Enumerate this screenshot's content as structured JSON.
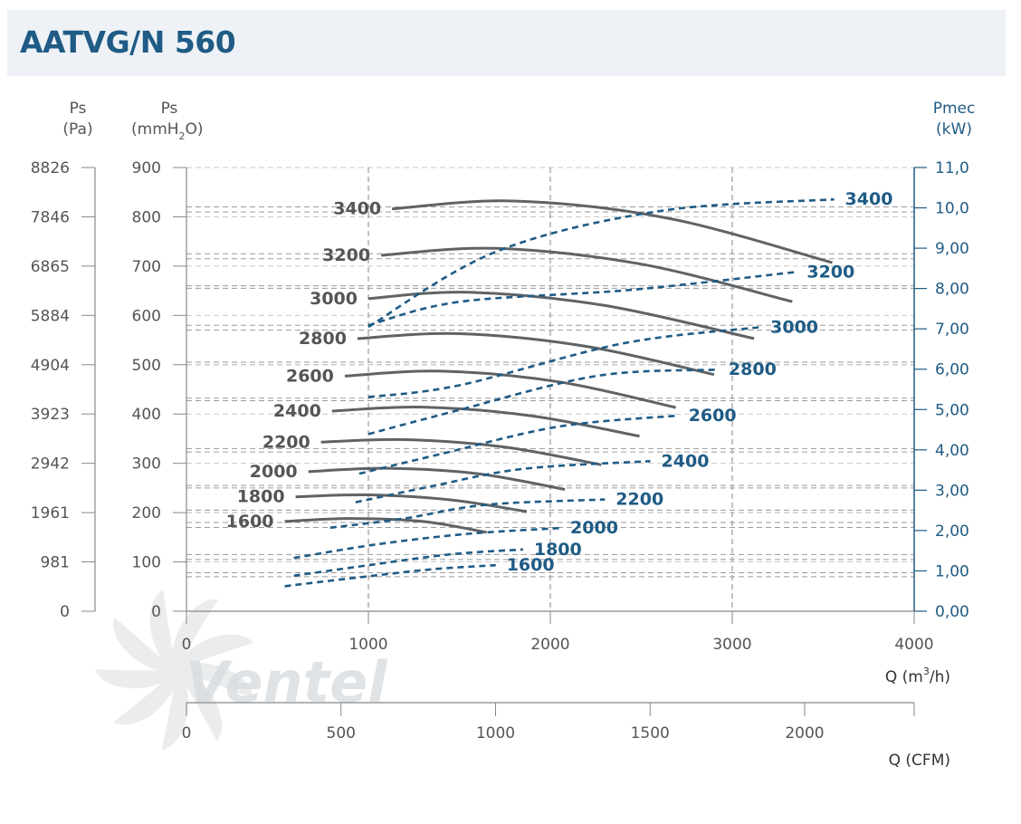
{
  "title": "AATVG/N 560",
  "colors": {
    "pressure_curve": "#5f6366",
    "power_curve": "#1f5b85",
    "grid": "#9a9a9a",
    "axis_gray": "#888888",
    "axis_blue": "#1f5b85",
    "title_bg": "#eef2f6",
    "title_text": "#1f5b85",
    "watermark": "#d9dde0"
  },
  "watermark_text": "Ventel",
  "axes": {
    "left_pa": {
      "title_line1": "Ps",
      "title_line2": "(Pa)",
      "ticks": [
        "8826",
        "7846",
        "6865",
        "5884",
        "4904",
        "3923",
        "2942",
        "1961",
        "981",
        "0"
      ]
    },
    "left_mm": {
      "title_line1": "Ps",
      "title_line2_pre": "(mmH",
      "title_line2_sub": "2",
      "title_line2_post": "O)",
      "ticks": [
        "900",
        "800",
        "700",
        "600",
        "500",
        "400",
        "300",
        "200",
        "100",
        "0"
      ],
      "range": [
        0,
        900
      ]
    },
    "right_kw": {
      "title_line1": "Pmec",
      "title_line2": "(kW)",
      "ticks": [
        "11,0",
        "10,0",
        "9,00",
        "8,00",
        "7,00",
        "6,00",
        "5,00",
        "4,00",
        "3,00",
        "2,00",
        "1,00",
        "0,00"
      ],
      "range": [
        0,
        11
      ]
    },
    "x_m3h": {
      "ticks": [
        "0",
        "1000",
        "2000",
        "3000",
        "4000"
      ],
      "range": [
        0,
        4000
      ],
      "label_pre": "Q (m",
      "label_sup": "3",
      "label_post": "/h)"
    },
    "x_cfm": {
      "ticks": [
        "0",
        "500",
        "1000",
        "1500",
        "2000"
      ],
      "label": "Q (CFM)"
    }
  },
  "chart_data": {
    "type": "line",
    "title": "AATVG/N 560",
    "xlabel": "Q (m3/h)",
    "ylabel": "Ps (mmH2O)",
    "y2label": "Pmec (kW)",
    "xlim": [
      0,
      4000
    ],
    "ylim": [
      0,
      900
    ],
    "y2lim": [
      0,
      11
    ],
    "pressure_series": [
      {
        "name": "1600",
        "points": [
          [
            540,
            182
          ],
          [
            900,
            188
          ],
          [
            1300,
            182
          ],
          [
            1650,
            160
          ]
        ]
      },
      {
        "name": "1800",
        "points": [
          [
            600,
            232
          ],
          [
            1000,
            236
          ],
          [
            1450,
            226
          ],
          [
            1870,
            202
          ]
        ]
      },
      {
        "name": "2000",
        "points": [
          [
            670,
            283
          ],
          [
            1100,
            290
          ],
          [
            1600,
            279
          ],
          [
            2080,
            247
          ]
        ]
      },
      {
        "name": "2200",
        "points": [
          [
            740,
            343
          ],
          [
            1200,
            348
          ],
          [
            1750,
            333
          ],
          [
            2280,
            297
          ]
        ]
      },
      {
        "name": "2400",
        "points": [
          [
            800,
            406
          ],
          [
            1300,
            414
          ],
          [
            1900,
            396
          ],
          [
            2490,
            355
          ]
        ]
      },
      {
        "name": "2600",
        "points": [
          [
            870,
            477
          ],
          [
            1400,
            487
          ],
          [
            2050,
            465
          ],
          [
            2690,
            413
          ]
        ]
      },
      {
        "name": "2800",
        "points": [
          [
            940,
            553
          ],
          [
            1500,
            563
          ],
          [
            2200,
            537
          ],
          [
            2900,
            480
          ]
        ]
      },
      {
        "name": "3000",
        "points": [
          [
            1000,
            634
          ],
          [
            1550,
            647
          ],
          [
            2300,
            620
          ],
          [
            3120,
            553
          ]
        ]
      },
      {
        "name": "3200",
        "points": [
          [
            1070,
            722
          ],
          [
            1700,
            736
          ],
          [
            2500,
            704
          ],
          [
            3330,
            628
          ]
        ]
      },
      {
        "name": "3400",
        "points": [
          [
            1130,
            816
          ],
          [
            1800,
            832
          ],
          [
            2650,
            797
          ],
          [
            3550,
            707
          ]
        ]
      }
    ],
    "power_series": [
      {
        "name": "1600",
        "points": [
          [
            540,
            0.62
          ],
          [
            950,
            0.84
          ],
          [
            1350,
            1.04
          ],
          [
            1700,
            1.14
          ]
        ]
      },
      {
        "name": "1800",
        "points": [
          [
            590,
            0.88
          ],
          [
            1000,
            1.14
          ],
          [
            1450,
            1.41
          ],
          [
            1850,
            1.53
          ]
        ]
      },
      {
        "name": "2000",
        "points": [
          [
            590,
            1.32
          ],
          [
            1050,
            1.66
          ],
          [
            1550,
            1.92
          ],
          [
            2050,
            2.06
          ]
        ]
      },
      {
        "name": "2200",
        "points": [
          [
            790,
            2.07
          ],
          [
            1200,
            2.3
          ],
          [
            1650,
            2.64
          ],
          [
            2300,
            2.77
          ]
        ]
      },
      {
        "name": "2400",
        "points": [
          [
            930,
            2.7
          ],
          [
            1350,
            3.1
          ],
          [
            1850,
            3.53
          ],
          [
            2550,
            3.72
          ]
        ]
      },
      {
        "name": "2600",
        "points": [
          [
            950,
            3.41
          ],
          [
            1400,
            3.9
          ],
          [
            2050,
            4.58
          ],
          [
            2700,
            4.85
          ]
        ]
      },
      {
        "name": "2800",
        "points": [
          [
            1000,
            4.39
          ],
          [
            1450,
            4.93
          ],
          [
            2250,
            5.83
          ],
          [
            2920,
            5.99
          ]
        ]
      },
      {
        "name": "3000",
        "points": [
          [
            1000,
            5.31
          ],
          [
            1500,
            5.6
          ],
          [
            2400,
            6.64
          ],
          [
            3150,
            7.04
          ]
        ]
      },
      {
        "name": "3200",
        "points": [
          [
            1000,
            7.09
          ],
          [
            1500,
            7.67
          ],
          [
            2450,
            7.97
          ],
          [
            3350,
            8.41
          ]
        ]
      },
      {
        "name": "3400",
        "points": [
          [
            1000,
            7.05
          ],
          [
            1700,
            8.91
          ],
          [
            2600,
            9.92
          ],
          [
            3560,
            10.21
          ]
        ]
      }
    ],
    "reference_levels_mm": [
      820,
      810,
      725,
      715,
      660,
      655,
      580,
      570,
      505,
      500,
      432,
      427,
      330,
      323,
      255,
      250,
      205,
      200,
      180,
      170,
      115,
      105,
      78,
      70
    ],
    "vertical_grid_m3h": [
      1000,
      2000,
      3000
    ]
  }
}
